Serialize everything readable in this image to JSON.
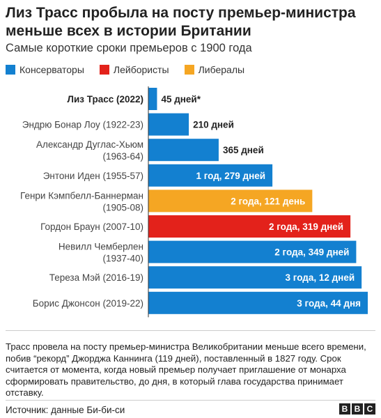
{
  "title": "Лиз Трасс пробыла на посту премьер-министра меньше всех в истории Британии",
  "subtitle": "Самые короткие сроки премьеров с 1900 года",
  "legend": [
    {
      "label": "Консерваторы",
      "color": "#1380d0"
    },
    {
      "label": "Лейбористы",
      "color": "#e3221b"
    },
    {
      "label": "Либералы",
      "color": "#f5a623"
    }
  ],
  "chart_data": {
    "type": "bar",
    "orientation": "horizontal",
    "unit": "days",
    "categories": [
      [
        "Лиз Трасс (2022)"
      ],
      [
        "Эндрю Бонар Лоу (1922-23)"
      ],
      [
        "Александр Дуглас-Хьюм",
        "(1963-64)"
      ],
      [
        "Энтони Иден (1955-57)"
      ],
      [
        "Генри Кэмпбелл-Баннерман",
        "(1905-08)"
      ],
      [
        "Гордон Браун (2007-10)"
      ],
      [
        "Невилл Чемберлен",
        "(1937-40)"
      ],
      [
        "Тереза Мэй (2016-19)"
      ],
      [
        "Борис Джонсон (2019-22)"
      ]
    ],
    "values": [
      45,
      210,
      365,
      644,
      851,
      1049,
      1079,
      1107,
      1139
    ],
    "value_labels": [
      "45 дней*",
      "210 дней",
      "365 дней",
      "1 год, 279 дней",
      "2 года, 121 день",
      "2 года, 319 дней",
      "2 года, 349 дней",
      "3 года, 12 дней",
      "3 года, 44 дня"
    ],
    "party": [
      "Консерваторы",
      "Консерваторы",
      "Консерваторы",
      "Консерваторы",
      "Либералы",
      "Лейбористы",
      "Консерваторы",
      "Консерваторы",
      "Консерваторы"
    ],
    "colors": [
      "#1380d0",
      "#1380d0",
      "#1380d0",
      "#1380d0",
      "#f5a623",
      "#e3221b",
      "#1380d0",
      "#1380d0",
      "#1380d0"
    ],
    "xlim": [
      0,
      1139
    ]
  },
  "note": "Трасс провела на посту премьер-министра Великобритании меньше всего времени, побив “рекорд” Джорджа Каннинга (119 дней), поставленный в 1827 году. Срок считается от момента, когда новый премьер получает приглашение от монарха сформировать правительство, до дня, в который глава государства принимает отставку.",
  "source": "Источник: данные Би-би-си",
  "logo": [
    "B",
    "B",
    "C"
  ]
}
